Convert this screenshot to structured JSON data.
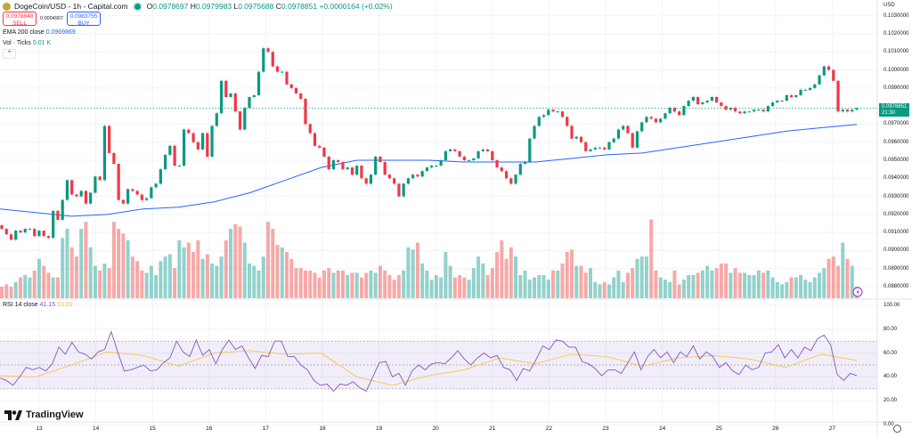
{
  "header": {
    "symbol": "DogeCoin/USD - 1h - Capital.com",
    "open_label": "O",
    "open": "0.0978697",
    "high_label": "H",
    "high": "0.0979983",
    "low_label": "L",
    "low": "0.0975688",
    "close_label": "C",
    "close": "0.0978851",
    "change": "+0.0000164 (+0.02%)"
  },
  "trade": {
    "sell_price": "0.0978848",
    "sell_label": "SELL",
    "spread": "0.0004907",
    "buy_price": "0.0983755",
    "buy_label": "BUY"
  },
  "indicators": {
    "ema_label": "EMA 200 close",
    "ema_value": "0.0969869",
    "vol_label": "Vol · Ticks",
    "vol_value": "5.01 K",
    "collapse_icon": "chevron-up-icon",
    "rsi_label": "RSI 14 close",
    "rsi_value": "41.15",
    "rsi_ma_value": "53.89"
  },
  "price_axis": {
    "currency": "USD",
    "ticks": [
      "0.1030000",
      "0.1020000",
      "0.1010000",
      "0.1000000",
      "0.0990000",
      "0.0970000",
      "0.0960000",
      "0.0950000",
      "0.0940000",
      "0.0930000",
      "0.0920000",
      "0.0910000",
      "0.0900000",
      "0.0890000",
      "0.0880000"
    ],
    "last_price": "0.0978851",
    "countdown": "21:30"
  },
  "rsi_axis": {
    "ticks": [
      "100.00",
      "80.00",
      "60.00",
      "40.00",
      "20.00",
      "0.00"
    ]
  },
  "date_axis": {
    "ticks": [
      "13",
      "14",
      "15",
      "16",
      "17",
      "18",
      "19",
      "20",
      "21",
      "22",
      "23",
      "24",
      "25",
      "26",
      "27"
    ]
  },
  "brand": {
    "name": "TradingView"
  },
  "colors": {
    "up": "#089981",
    "down": "#f23645",
    "ema": "#2962ff",
    "rsi": "#7e57c2",
    "rsi_ma": "#f7c548",
    "rsi_band": "#7e57c2"
  },
  "chart_data": {
    "type": "candlestick",
    "timeframe": "1h",
    "first_open": 0.0914,
    "closes": [
      0.0912,
      0.0909,
      0.0906,
      0.0911,
      0.091,
      0.0912,
      0.0912,
      0.0908,
      0.0911,
      0.0908,
      0.0907,
      0.0922,
      0.0917,
      0.0928,
      0.0939,
      0.0931,
      0.093,
      0.0933,
      0.0926,
      0.0932,
      0.0941,
      0.0939,
      0.0969,
      0.0954,
      0.0948,
      0.0928,
      0.0926,
      0.0934,
      0.0933,
      0.0931,
      0.0928,
      0.0929,
      0.0935,
      0.0937,
      0.0945,
      0.0953,
      0.0958,
      0.0947,
      0.0947,
      0.0967,
      0.0965,
      0.096,
      0.0956,
      0.0965,
      0.0952,
      0.0969,
      0.0976,
      0.0994,
      0.0985,
      0.0987,
      0.0977,
      0.0967,
      0.0979,
      0.0985,
      0.0986,
      0.0999,
      0.1012,
      0.101,
      0.1002,
      0.0999,
      0.0999,
      0.0992,
      0.099,
      0.0987,
      0.0984,
      0.097,
      0.0965,
      0.0958,
      0.0957,
      0.0952,
      0.0945,
      0.095,
      0.0949,
      0.0945,
      0.0946,
      0.0942,
      0.0947,
      0.094,
      0.0937,
      0.0942,
      0.0952,
      0.0949,
      0.0942,
      0.094,
      0.0937,
      0.093,
      0.0937,
      0.094,
      0.0942,
      0.0941,
      0.0944,
      0.0946,
      0.0947,
      0.0947,
      0.095,
      0.0955,
      0.0956,
      0.0955,
      0.0952,
      0.095,
      0.095,
      0.0951,
      0.0955,
      0.0956,
      0.0955,
      0.095,
      0.0946,
      0.0944,
      0.094,
      0.0937,
      0.0942,
      0.0948,
      0.0949,
      0.0962,
      0.0969,
      0.0974,
      0.0975,
      0.0978,
      0.0977,
      0.0977,
      0.0974,
      0.0969,
      0.0962,
      0.0963,
      0.096,
      0.0955,
      0.0956,
      0.0957,
      0.0957,
      0.0956,
      0.096,
      0.0962,
      0.0967,
      0.0969,
      0.0965,
      0.0957,
      0.0966,
      0.0971,
      0.0974,
      0.0973,
      0.0971,
      0.0973,
      0.0976,
      0.0979,
      0.0977,
      0.0975,
      0.098,
      0.0983,
      0.0985,
      0.0981,
      0.0982,
      0.0983,
      0.0985,
      0.0982,
      0.098,
      0.0978,
      0.0979,
      0.0977,
      0.0976,
      0.0977,
      0.0977,
      0.0978,
      0.0978,
      0.0977,
      0.098,
      0.0982,
      0.0983,
      0.0983,
      0.0986,
      0.0985,
      0.0986,
      0.0989,
      0.0989,
      0.099,
      0.0992,
      0.0997,
      0.1002,
      0.1,
      0.0994,
      0.0977,
      0.0978,
      0.0977,
      0.0978,
      0.0978851
    ],
    "volumes_k": [
      5,
      6,
      5,
      7,
      9,
      10,
      9,
      12,
      17,
      14,
      11,
      9,
      9,
      26,
      30,
      22,
      18,
      30,
      33,
      22,
      14,
      12,
      15,
      13,
      33,
      30,
      28,
      25,
      18,
      16,
      12,
      11,
      14,
      10,
      16,
      18,
      19,
      13,
      25,
      22,
      24,
      20,
      25,
      17,
      19,
      15,
      14,
      18,
      25,
      30,
      32,
      31,
      24,
      15,
      14,
      12,
      18,
      33,
      30,
      23,
      22,
      20,
      17,
      13,
      13,
      12,
      12,
      11,
      9,
      12,
      13,
      11,
      12,
      12,
      10,
      11,
      11,
      9,
      11,
      12,
      11,
      14,
      12,
      10,
      8,
      10,
      12,
      22,
      21,
      24,
      15,
      12,
      8,
      10,
      9,
      20,
      14,
      9,
      10,
      9,
      8,
      13,
      18,
      15,
      10,
      13,
      20,
      25,
      17,
      22,
      18,
      10,
      12,
      8,
      9,
      10,
      10,
      8,
      12,
      12,
      15,
      20,
      21,
      14,
      14,
      11,
      13,
      7,
      6,
      7,
      6,
      9,
      12,
      7,
      11,
      13,
      17,
      18,
      18,
      34,
      12,
      9,
      8,
      7,
      12,
      6,
      8,
      10,
      10,
      11,
      12,
      14,
      12,
      13,
      15,
      15,
      11,
      13,
      11,
      11,
      10,
      10,
      12,
      11,
      12,
      9,
      7,
      6,
      7,
      9,
      9,
      10,
      8,
      7,
      9,
      11,
      13,
      17,
      18,
      14,
      24,
      17,
      14,
      5.01
    ],
    "ema200": [
      0.0923,
      0.0921,
      0.0919,
      0.092,
      0.0923,
      0.0924,
      0.0927,
      0.0932,
      0.0939,
      0.0946,
      0.095,
      0.095,
      0.095,
      0.0949,
      0.0949,
      0.0949,
      0.0951,
      0.0953,
      0.0954,
      0.0957,
      0.096,
      0.0963,
      0.0966,
      0.0968,
      0.0969869
    ],
    "rsi": [
      39,
      37,
      33,
      40,
      48,
      46,
      48,
      45,
      51,
      65,
      59,
      69,
      61,
      59,
      55,
      61,
      63,
      78,
      61,
      45,
      46,
      48,
      50,
      45,
      46,
      52,
      56,
      70,
      61,
      57,
      71,
      58,
      63,
      51,
      63,
      71,
      63,
      66,
      56,
      47,
      58,
      57,
      70,
      70,
      57,
      57,
      50,
      46,
      37,
      33,
      34,
      28,
      34,
      33,
      36,
      31,
      28,
      40,
      52,
      53,
      40,
      43,
      33,
      45,
      50,
      46,
      51,
      52,
      51,
      56,
      62,
      55,
      50,
      56,
      60,
      56,
      58,
      48,
      46,
      37,
      47,
      45,
      55,
      66,
      63,
      71,
      70,
      65,
      65,
      53,
      51,
      47,
      41,
      46,
      46,
      43,
      52,
      61,
      46,
      57,
      63,
      56,
      61,
      52,
      61,
      57,
      66,
      55,
      61,
      57,
      48,
      52,
      45,
      42,
      50,
      46,
      48,
      60,
      61,
      67,
      56,
      63,
      56,
      65,
      62,
      72,
      75,
      67,
      42,
      37,
      43,
      41.15
    ],
    "rsi_ma": [
      41,
      40,
      50,
      61,
      58,
      49,
      60,
      62,
      59,
      60,
      40,
      33,
      41,
      46,
      56,
      51,
      59,
      57,
      49,
      56,
      58,
      55,
      48,
      59,
      53.89
    ],
    "rsi_bands": [
      30,
      50,
      70
    ],
    "price_range": [
      0.0875,
      0.1033
    ],
    "rsi_range": [
      0,
      100
    ],
    "grid": true
  }
}
